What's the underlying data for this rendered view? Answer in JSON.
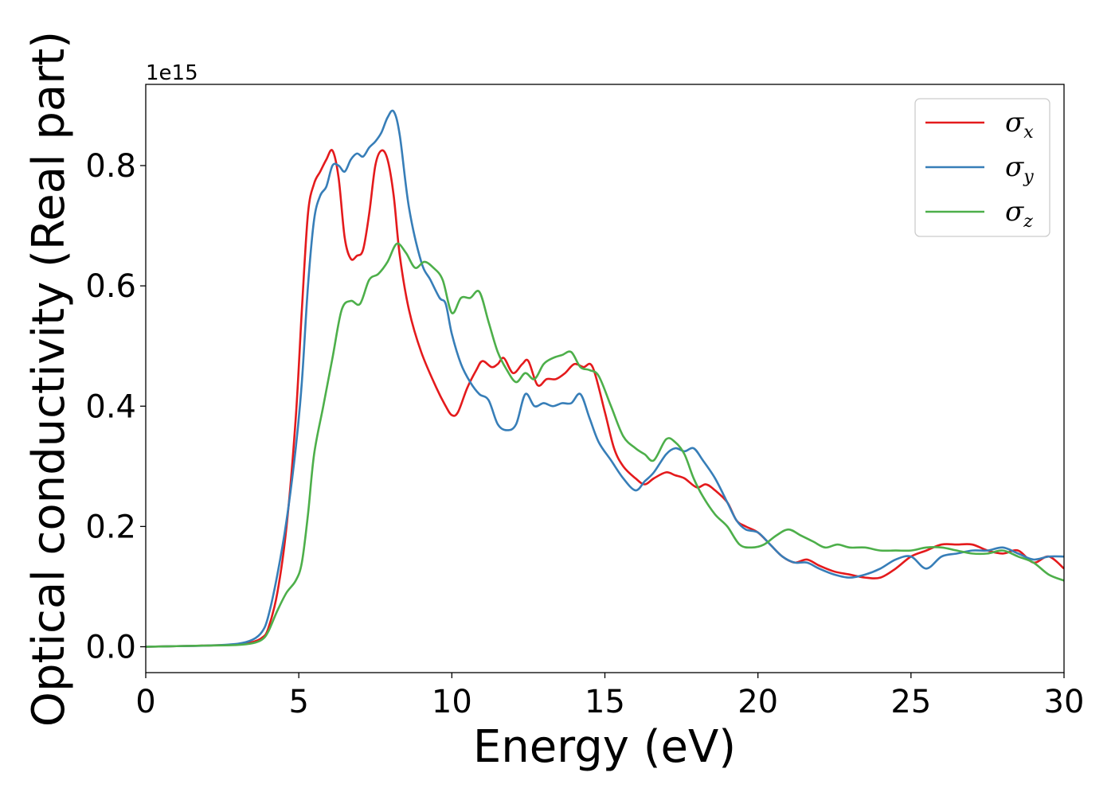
{
  "chart_data": {
    "type": "line",
    "title": "",
    "xlabel": "Energy (eV)",
    "ylabel": "Optical conductivity (Real part)",
    "y_offset_label": "1e15",
    "xlim": [
      0,
      30
    ],
    "ylim": [
      -0.043,
      0.935
    ],
    "xticks": [
      0,
      5,
      10,
      15,
      20,
      25,
      30
    ],
    "yticks": [
      0.0,
      0.2,
      0.4,
      0.6,
      0.8
    ],
    "xtick_labels": [
      "0",
      "5",
      "10",
      "15",
      "20",
      "25",
      "30"
    ],
    "ytick_labels": [
      "0.0",
      "0.2",
      "0.4",
      "0.6",
      "0.8"
    ],
    "grid": false,
    "legend_position": "top-right",
    "series": [
      {
        "name": "σx",
        "symbol": "σ",
        "subscript": "x",
        "color": "#e41a1c",
        "x": [
          0,
          1,
          2,
          3,
          3.5,
          3.8,
          4,
          4.3,
          4.6,
          4.9,
          5.1,
          5.3,
          5.5,
          5.7,
          5.9,
          6.1,
          6.3,
          6.5,
          6.7,
          6.9,
          7.1,
          7.3,
          7.5,
          7.7,
          7.9,
          8.1,
          8.3,
          8.6,
          9,
          9.5,
          9.8,
          10,
          10.2,
          10.5,
          10.8,
          11,
          11.3,
          11.5,
          11.7,
          12,
          12.3,
          12.5,
          12.8,
          13.1,
          13.4,
          13.7,
          14,
          14.3,
          14.6,
          15,
          15.3,
          15.6,
          16,
          16.3,
          16.6,
          17,
          17.3,
          17.6,
          18,
          18.3,
          18.6,
          19,
          19.3,
          19.6,
          20,
          20.4,
          20.8,
          21.2,
          21.6,
          22,
          22.5,
          23,
          23.5,
          24,
          24.5,
          25,
          25.5,
          26,
          26.5,
          27,
          27.5,
          28,
          28.5,
          29,
          29.5,
          30
        ],
        "y": [
          0,
          0.001,
          0.002,
          0.004,
          0.008,
          0.015,
          0.03,
          0.09,
          0.2,
          0.38,
          0.56,
          0.72,
          0.77,
          0.79,
          0.81,
          0.825,
          0.78,
          0.68,
          0.645,
          0.65,
          0.66,
          0.72,
          0.8,
          0.825,
          0.81,
          0.75,
          0.65,
          0.56,
          0.49,
          0.43,
          0.4,
          0.385,
          0.39,
          0.43,
          0.46,
          0.475,
          0.465,
          0.47,
          0.48,
          0.455,
          0.47,
          0.475,
          0.435,
          0.445,
          0.445,
          0.455,
          0.47,
          0.465,
          0.465,
          0.39,
          0.33,
          0.3,
          0.28,
          0.27,
          0.28,
          0.29,
          0.285,
          0.28,
          0.265,
          0.27,
          0.26,
          0.24,
          0.21,
          0.2,
          0.19,
          0.17,
          0.15,
          0.14,
          0.145,
          0.135,
          0.125,
          0.12,
          0.115,
          0.115,
          0.13,
          0.15,
          0.16,
          0.17,
          0.17,
          0.17,
          0.16,
          0.155,
          0.16,
          0.14,
          0.15,
          0.13
        ]
      },
      {
        "name": "σy",
        "symbol": "σ",
        "subscript": "y",
        "color": "#377eb8",
        "x": [
          0,
          1,
          2,
          3,
          3.5,
          3.8,
          4,
          4.3,
          4.6,
          4.9,
          5.1,
          5.3,
          5.5,
          5.7,
          5.9,
          6.1,
          6.3,
          6.5,
          6.7,
          6.9,
          7.1,
          7.3,
          7.5,
          7.7,
          7.9,
          8.1,
          8.3,
          8.6,
          9,
          9.3,
          9.6,
          9.8,
          10,
          10.3,
          10.6,
          10.9,
          11.2,
          11.5,
          11.8,
          12.1,
          12.4,
          12.7,
          13,
          13.3,
          13.6,
          13.9,
          14.2,
          14.5,
          14.8,
          15.2,
          15.6,
          16,
          16.3,
          16.6,
          17,
          17.3,
          17.6,
          17.9,
          18.2,
          18.6,
          19,
          19.3,
          19.6,
          20,
          20.4,
          20.8,
          21.2,
          21.6,
          22,
          22.5,
          23,
          23.5,
          24,
          24.5,
          25,
          25.5,
          26,
          26.5,
          27,
          27.5,
          28,
          28.5,
          29,
          29.5,
          30
        ],
        "y": [
          0,
          0.001,
          0.002,
          0.005,
          0.012,
          0.025,
          0.05,
          0.12,
          0.21,
          0.33,
          0.44,
          0.6,
          0.71,
          0.75,
          0.765,
          0.8,
          0.8,
          0.79,
          0.81,
          0.82,
          0.815,
          0.83,
          0.84,
          0.855,
          0.88,
          0.89,
          0.85,
          0.73,
          0.64,
          0.61,
          0.58,
          0.57,
          0.52,
          0.47,
          0.44,
          0.42,
          0.41,
          0.37,
          0.36,
          0.37,
          0.42,
          0.4,
          0.405,
          0.4,
          0.405,
          0.405,
          0.42,
          0.38,
          0.34,
          0.31,
          0.28,
          0.26,
          0.275,
          0.29,
          0.32,
          0.33,
          0.325,
          0.33,
          0.31,
          0.28,
          0.24,
          0.21,
          0.195,
          0.19,
          0.17,
          0.15,
          0.14,
          0.14,
          0.13,
          0.12,
          0.115,
          0.12,
          0.13,
          0.145,
          0.15,
          0.13,
          0.15,
          0.155,
          0.16,
          0.16,
          0.165,
          0.155,
          0.145,
          0.15,
          0.15
        ]
      },
      {
        "name": "σz",
        "symbol": "σ",
        "subscript": "z",
        "color": "#4daf4a",
        "x": [
          0,
          1,
          2,
          3,
          3.5,
          3.8,
          4,
          4.3,
          4.6,
          4.9,
          5.1,
          5.3,
          5.5,
          5.8,
          6.1,
          6.4,
          6.7,
          7,
          7.3,
          7.6,
          7.9,
          8.2,
          8.5,
          8.8,
          9.1,
          9.4,
          9.7,
          10,
          10.3,
          10.6,
          10.9,
          11.2,
          11.5,
          11.8,
          12.1,
          12.4,
          12.7,
          13,
          13.3,
          13.6,
          13.9,
          14.2,
          14.5,
          14.8,
          15.2,
          15.6,
          16,
          16.3,
          16.6,
          17,
          17.3,
          17.6,
          17.9,
          18.2,
          18.6,
          19,
          19.4,
          19.8,
          20.2,
          20.6,
          21,
          21.4,
          21.8,
          22.2,
          22.6,
          23,
          23.5,
          24,
          24.5,
          25,
          25.5,
          26,
          26.5,
          27,
          27.5,
          28,
          28.5,
          29,
          29.5,
          30
        ],
        "y": [
          0,
          0.001,
          0.002,
          0.003,
          0.006,
          0.012,
          0.025,
          0.06,
          0.09,
          0.11,
          0.14,
          0.22,
          0.32,
          0.4,
          0.48,
          0.56,
          0.575,
          0.57,
          0.61,
          0.62,
          0.64,
          0.67,
          0.655,
          0.63,
          0.64,
          0.63,
          0.61,
          0.555,
          0.58,
          0.58,
          0.59,
          0.54,
          0.49,
          0.46,
          0.44,
          0.455,
          0.445,
          0.47,
          0.48,
          0.485,
          0.49,
          0.465,
          0.46,
          0.45,
          0.4,
          0.35,
          0.33,
          0.32,
          0.31,
          0.345,
          0.34,
          0.32,
          0.28,
          0.25,
          0.22,
          0.2,
          0.17,
          0.165,
          0.17,
          0.185,
          0.195,
          0.185,
          0.175,
          0.165,
          0.17,
          0.165,
          0.165,
          0.16,
          0.16,
          0.16,
          0.165,
          0.165,
          0.16,
          0.155,
          0.155,
          0.16,
          0.15,
          0.14,
          0.12,
          0.11
        ]
      }
    ]
  }
}
